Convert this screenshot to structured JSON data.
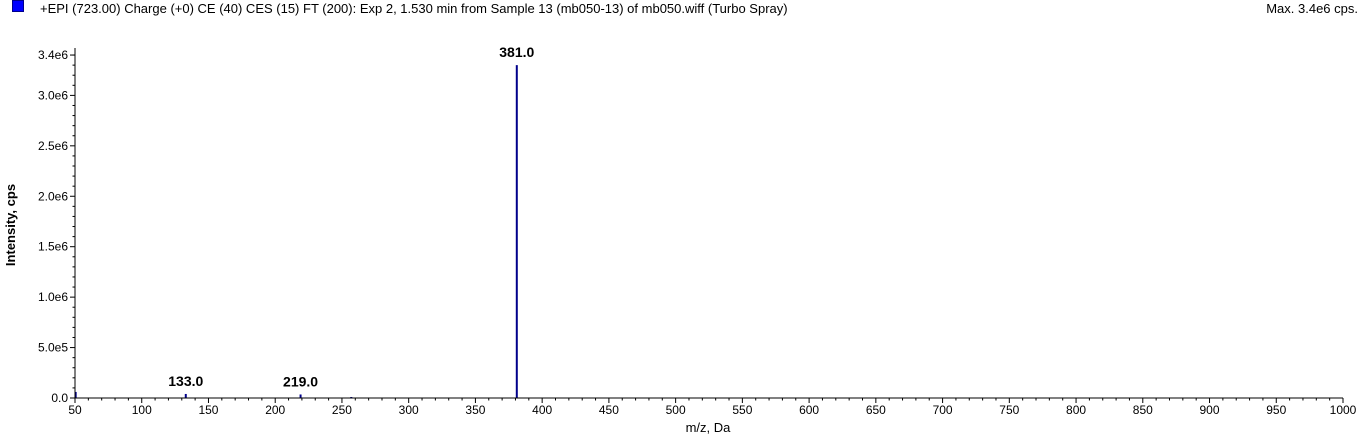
{
  "header": {
    "title": "+EPI (723.00) Charge (+0) CE (40) CES (15) FT (200): Exp 2, 1.530 min from Sample 13 (mb050-13) of mb050.wiff (Turbo Spray)",
    "max_label": "Max. 3.4e6 cps."
  },
  "chart_data": {
    "type": "bar",
    "xlabel": "m/z, Da",
    "ylabel": "Intensity, cps",
    "xlim": [
      50,
      1000
    ],
    "ylim": [
      0,
      3450000
    ],
    "x_ticks": [
      50,
      100,
      150,
      200,
      250,
      300,
      350,
      400,
      450,
      500,
      550,
      600,
      650,
      700,
      750,
      800,
      850,
      900,
      950,
      1000
    ],
    "y_ticks": [
      {
        "value": 0,
        "label": "0.0"
      },
      {
        "value": 500000,
        "label": "5.0e5"
      },
      {
        "value": 1000000,
        "label": "1.0e6"
      },
      {
        "value": 1500000,
        "label": "1.5e6"
      },
      {
        "value": 2000000,
        "label": "2.0e6"
      },
      {
        "value": 2500000,
        "label": "2.5e6"
      },
      {
        "value": 3000000,
        "label": "3.0e6"
      },
      {
        "value": 3400000,
        "label": "3.4e6"
      }
    ],
    "series": [
      {
        "color": "#00008b",
        "peaks": [
          {
            "x": 50.5,
            "y": 60000
          },
          {
            "x": 133.0,
            "y": 40000
          },
          {
            "x": 219.0,
            "y": 35000
          },
          {
            "x": 257.0,
            "y": 10000
          },
          {
            "x": 381.0,
            "y": 3300000
          }
        ]
      }
    ],
    "peak_labels": [
      {
        "x": 133.0,
        "text": "133.0"
      },
      {
        "x": 219.0,
        "text": "219.0"
      },
      {
        "x": 381.0,
        "text": "381.0"
      }
    ]
  }
}
